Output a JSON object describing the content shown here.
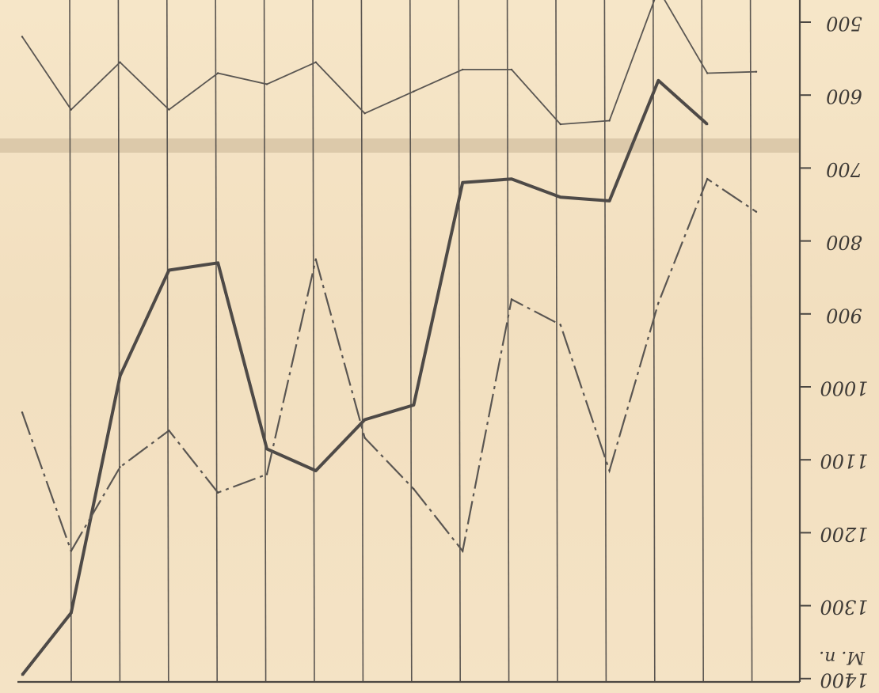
{
  "chart_data": {
    "type": "line",
    "orientation": "upside-down scan",
    "y_axis": {
      "unit_label": "M. n.",
      "ticks": [
        "1400",
        "1300",
        "1200",
        "1100",
        "1000",
        "900",
        "800",
        "700",
        "600",
        "500"
      ],
      "tick_values": [
        1400,
        1300,
        1200,
        1100,
        1000,
        900,
        800,
        700,
        600,
        500
      ],
      "ylim": [
        500,
        1400
      ],
      "inverted": true
    },
    "x": [
      1,
      2,
      3,
      4,
      5,
      6,
      7,
      8,
      9,
      10,
      11,
      12,
      13,
      14,
      15,
      16
    ],
    "grid": true,
    "series": [
      {
        "style": "solid-thick",
        "values": [
          1395,
          1310,
          985,
          840,
          830,
          1085,
          1115,
          1045,
          1025,
          720,
          715,
          740,
          745,
          580,
          640,
          null
        ]
      },
      {
        "style": "dash-dot",
        "values": [
          1035,
          1225,
          1110,
          1060,
          1145,
          1120,
          825,
          1070,
          1140,
          1225,
          880,
          915,
          1115,
          885,
          715,
          760
        ]
      },
      {
        "style": "thin-top-a",
        "values": [
          520,
          620,
          555,
          620,
          570,
          585,
          555,
          625,
          595,
          565,
          565,
          640,
          635,
          455,
          570,
          568
        ]
      }
    ],
    "colors": {
      "paper": "#f3e2c4",
      "ink": "#4e4a47"
    }
  }
}
